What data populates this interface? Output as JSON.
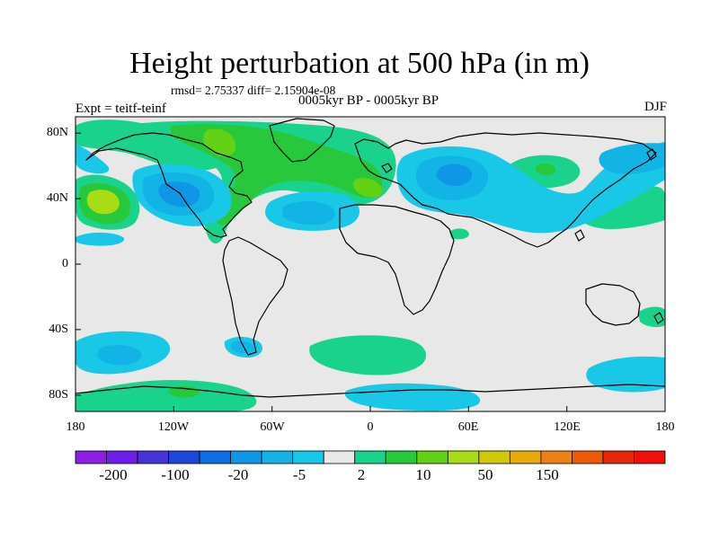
{
  "title": "Height perturbation at 500 hPa (in m)",
  "stats": "rmsd= 2.75337 diff= 2.15904e-08",
  "subtitle_left": "Expt = teitf-teinf",
  "subtitle_center": "0005kyr BP - 0005kyr BP",
  "subtitle_right": "DJF",
  "lat_labels": [
    "80N",
    "40N",
    "0",
    "40S",
    "80S"
  ],
  "lon_labels": [
    "180",
    "120W",
    "60W",
    "0",
    "60E",
    "120E",
    "180"
  ],
  "colorbar": {
    "colors": [
      "#8c1ee6",
      "#6e1ee6",
      "#4633d9",
      "#1e46d9",
      "#0f6ee6",
      "#0f96e6",
      "#12b4e6",
      "#19c8e6",
      "#e8e8e8",
      "#19d28c",
      "#28c83c",
      "#64d214",
      "#a8dc14",
      "#d2c80a",
      "#e6aa0a",
      "#ec8214",
      "#ec5a0a",
      "#e6280a",
      "#f00f0f"
    ],
    "labels": [
      "-200",
      "-100",
      "-20",
      "-5",
      "2",
      "10",
      "50",
      "150"
    ]
  }
}
